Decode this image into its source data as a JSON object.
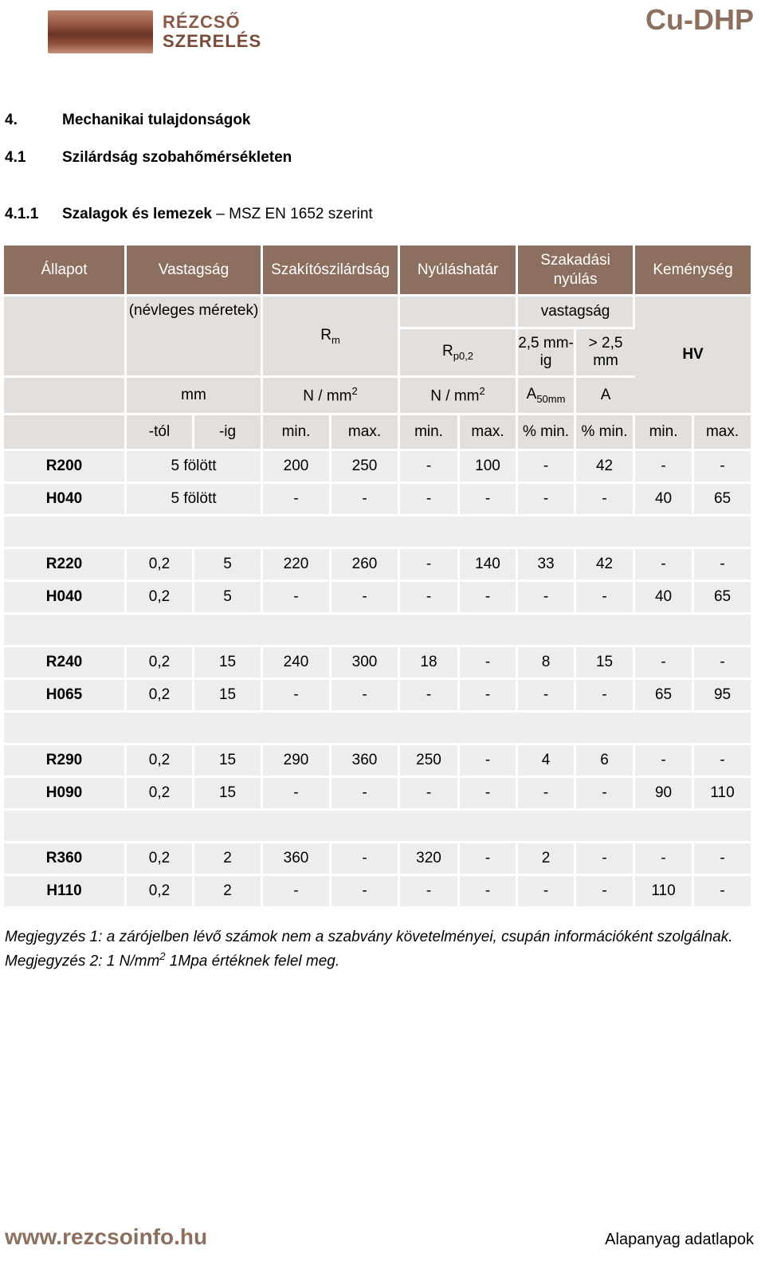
{
  "header": {
    "logo_line1": "RÉZCSŐ",
    "logo_line2": "SZERELÉS",
    "brand": "Cu-DHP"
  },
  "sections": {
    "h1_num": "4.",
    "h1_title": "Mechanikai tulajdonságok",
    "h2_num": "4.1",
    "h2_title": "Szilárdság szobahőmérsékleten",
    "h3_num": "4.1.1",
    "h3_title_bold": "Szalagok és lemezek",
    "h3_title_rest": " – MSZ EN 1652 szerint"
  },
  "table": {
    "headers": {
      "allapot": "Állapot",
      "vastagsag": "Vastagság",
      "szakito": "Szakítószilárdság",
      "nyulas": "Nyúláshatár",
      "szakadasi": "Szakadási nyúlás",
      "kemenyseg": "Keménység"
    },
    "sub1": {
      "nevleges": "(névleges méretek)",
      "rm_base": "R",
      "rm_sub": "m",
      "vastagsag": "vastagság",
      "rp_base": "R",
      "rp_sub": "p0,2",
      "le25": "2,5 mm-ig",
      "gt25": "> 2,5 mm",
      "hv": "HV"
    },
    "units": {
      "mm": "mm",
      "n1_base": "N / mm",
      "n1_sup": "2",
      "n2_base": "N / mm",
      "n2_sup": "2",
      "a50_base": "A",
      "a50_sub": "50mm",
      "a": "A"
    },
    "minmax": [
      "-tól",
      "-ig",
      "min.",
      "max.",
      "min.",
      "max.",
      "% min.",
      "% min.",
      "min.",
      "max."
    ],
    "groups": [
      {
        "rows": [
          {
            "state": "R200",
            "thick": "5 fölött",
            "c": [
              "200",
              "250",
              "-",
              "100",
              "-",
              "42",
              "-",
              "-"
            ]
          },
          {
            "state": "H040",
            "thick": "5 fölött",
            "c": [
              "-",
              "-",
              "-",
              "-",
              "-",
              "-",
              "40",
              "65"
            ]
          }
        ]
      },
      {
        "rows": [
          {
            "state": "R220",
            "from": "0,2",
            "to": "5",
            "c": [
              "220",
              "260",
              "-",
              "140",
              "33",
              "42",
              "-",
              "-"
            ]
          },
          {
            "state": "H040",
            "from": "0,2",
            "to": "5",
            "c": [
              "-",
              "-",
              "-",
              "-",
              "-",
              "-",
              "40",
              "65"
            ]
          }
        ]
      },
      {
        "rows": [
          {
            "state": "R240",
            "from": "0,2",
            "to": "15",
            "c": [
              "240",
              "300",
              "18",
              "-",
              "8",
              "15",
              "-",
              "-"
            ]
          },
          {
            "state": "H065",
            "from": "0,2",
            "to": "15",
            "c": [
              "-",
              "-",
              "-",
              "-",
              "-",
              "-",
              "65",
              "95"
            ]
          }
        ]
      },
      {
        "rows": [
          {
            "state": "R290",
            "from": "0,2",
            "to": "15",
            "c": [
              "290",
              "360",
              "250",
              "-",
              "4",
              "6",
              "-",
              "-"
            ]
          },
          {
            "state": "H090",
            "from": "0,2",
            "to": "15",
            "c": [
              "-",
              "-",
              "-",
              "-",
              "-",
              "-",
              "90",
              "110"
            ]
          }
        ]
      },
      {
        "rows": [
          {
            "state": "R360",
            "from": "0,2",
            "to": "2",
            "c": [
              "360",
              "-",
              "320",
              "-",
              "2",
              "-",
              "-",
              "-"
            ]
          },
          {
            "state": "H110",
            "from": "0,2",
            "to": "2",
            "c": [
              "-",
              "-",
              "-",
              "-",
              "-",
              "-",
              "110",
              "-"
            ]
          }
        ]
      }
    ]
  },
  "notes": {
    "note1": "Megjegyzés 1: a zárójelben lévő számok nem a szabvány követelményei, csupán információként szolgálnak.",
    "note2_pre": "Megjegyzés 2: 1 N/mm",
    "note2_sup": "2",
    "note2_post": " 1Mpa értéknek felel meg."
  },
  "footer": {
    "url": "www.rezcsoinfo.hu",
    "right": "Alapanyag adatlapok"
  },
  "colors": {
    "header_bg": "#8c6f5e",
    "subheader_bg": "#e3dfdc",
    "row_bg": "#ededed"
  }
}
